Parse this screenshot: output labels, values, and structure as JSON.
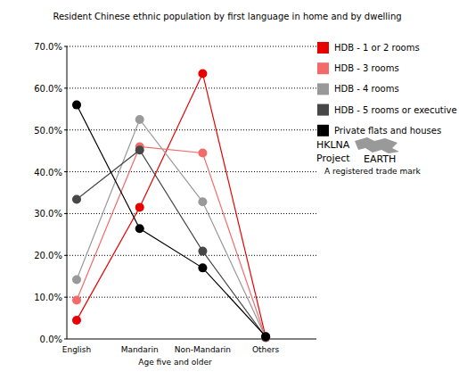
{
  "chart_data": {
    "type": "line",
    "title": "Resident Chinese ethnic population by first language in home and by dwelling",
    "x_label": "Age five and older",
    "categories": [
      "English",
      "Mandarin",
      "Non-Mandarin",
      "Others"
    ],
    "series": [
      {
        "name": "HDB - 1 or 2 rooms",
        "color": "#e80000",
        "values": [
          4.5,
          31.5,
          63.5,
          0.5
        ]
      },
      {
        "name": "HDB - 3 rooms",
        "color": "#f26a6a",
        "values": [
          9.3,
          46.0,
          44.5,
          0.3
        ]
      },
      {
        "name": "HDB - 4 rooms",
        "color": "#999999",
        "values": [
          14.2,
          52.5,
          32.8,
          0.4
        ]
      },
      {
        "name": "HDB - 5 rooms or executive",
        "color": "#474747",
        "values": [
          33.4,
          45.2,
          21.0,
          0.4
        ]
      },
      {
        "name": "Private flats and houses",
        "color": "#000000",
        "values": [
          56.0,
          26.4,
          17.0,
          0.6
        ]
      }
    ],
    "ylim": [
      0,
      70
    ],
    "yticks": [
      {
        "value": 0,
        "label": "0.0%"
      },
      {
        "value": 10,
        "label": "10.0%"
      },
      {
        "value": 20,
        "label": "20.0%"
      },
      {
        "value": 30,
        "label": "30.0%"
      },
      {
        "value": 40,
        "label": "40.0%"
      },
      {
        "value": 50,
        "label": "50.0%"
      },
      {
        "value": 60,
        "label": "60.0%"
      },
      {
        "value": 70,
        "label": "70.0%"
      }
    ],
    "grid": true,
    "legend": "right",
    "marker": "circle",
    "annotations": [
      "HKLNA",
      "Project",
      "EARTH",
      "A registered trade mark"
    ]
  }
}
